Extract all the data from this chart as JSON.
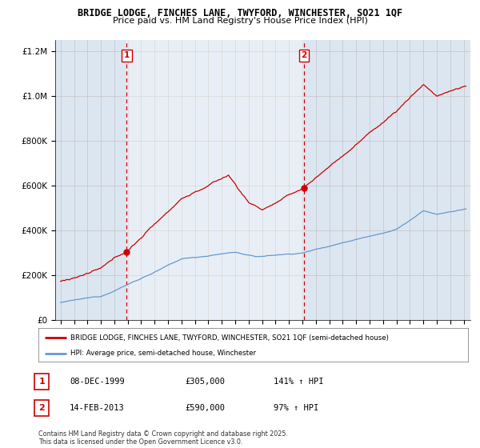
{
  "title": "BRIDGE LODGE, FINCHES LANE, TWYFORD, WINCHESTER, SO21 1QF",
  "subtitle": "Price paid vs. HM Land Registry's House Price Index (HPI)",
  "legend_label_red": "BRIDGE LODGE, FINCHES LANE, TWYFORD, WINCHESTER, SO21 1QF (semi-detached house)",
  "legend_label_blue": "HPI: Average price, semi-detached house, Winchester",
  "footer": "Contains HM Land Registry data © Crown copyright and database right 2025.\nThis data is licensed under the Open Government Licence v3.0.",
  "sale1_label": "1",
  "sale1_date": "08-DEC-1999",
  "sale1_price": "£305,000",
  "sale1_hpi": "141% ↑ HPI",
  "sale2_label": "2",
  "sale2_date": "14-FEB-2013",
  "sale2_price": "£590,000",
  "sale2_hpi": "97% ↑ HPI",
  "sale1_year": 1999.92,
  "sale2_year": 2013.12,
  "sale1_value": 305000,
  "sale2_value": 590000,
  "ylim_max": 1250000,
  "ylim_min": 0,
  "xlim_min": 1994.6,
  "xlim_max": 2025.5,
  "red_color": "#cc0000",
  "blue_color": "#6699cc",
  "blue_fill": "#c5d8ee",
  "vline_color": "#cc0000",
  "bg_color": "#dce6f1",
  "shade_color": "#c5d8ee",
  "grid_color": "#bbbbbb",
  "title_fontsize": 9,
  "subtitle_fontsize": 8
}
